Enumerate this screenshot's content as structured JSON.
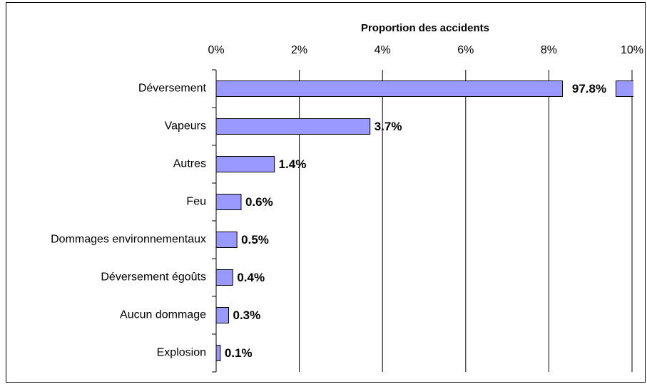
{
  "chart_data": {
    "type": "barh",
    "title": "Proportion des accidents",
    "categories": [
      "Déversement",
      "Vapeurs",
      "Autres",
      "Feu",
      "Dommages environnementaux",
      "Déversement égoûts",
      "Aucun dommage",
      "Explosion"
    ],
    "values": [
      97.8,
      3.7,
      1.4,
      0.6,
      0.5,
      0.4,
      0.3,
      0.1
    ],
    "value_labels": [
      "97.8%",
      "3.7%",
      "1.4%",
      "0.6%",
      "0.5%",
      "0.4%",
      "0.3%",
      "0.1%"
    ],
    "color": "#9999ff",
    "xlim": [
      0,
      10
    ],
    "xticks": [
      {
        "value": 0,
        "label": "0%"
      },
      {
        "value": 2,
        "label": "2%"
      },
      {
        "value": 4,
        "label": "4%"
      },
      {
        "value": 6,
        "label": "6%"
      },
      {
        "value": 8,
        "label": "8%"
      },
      {
        "value": 10,
        "label": "10%"
      }
    ],
    "grid": true
  }
}
